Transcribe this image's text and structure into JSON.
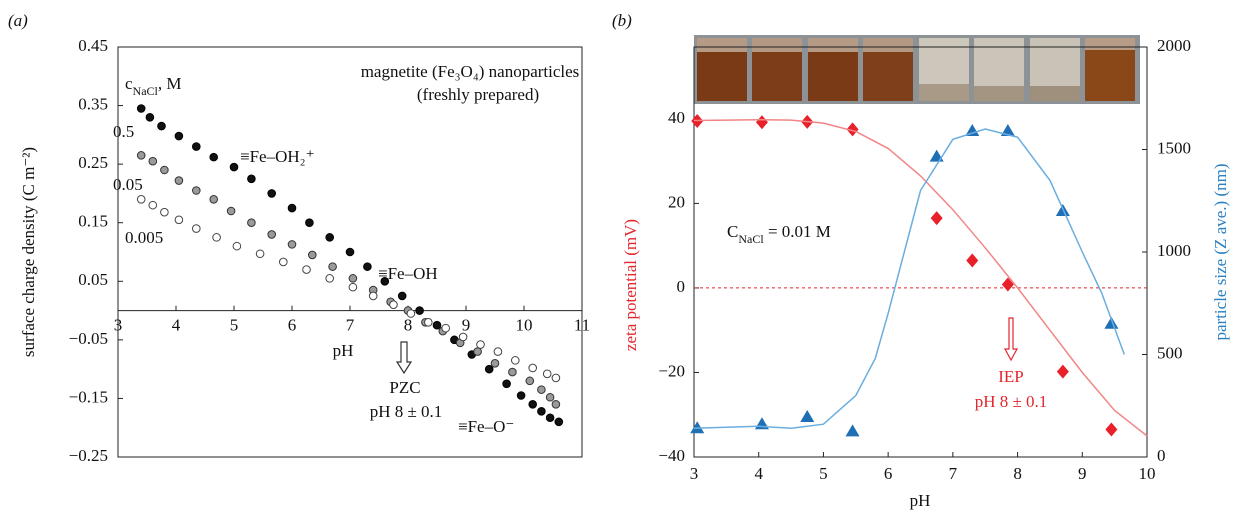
{
  "chart_data": [
    {
      "type": "scatter",
      "panel_label": "(a)",
      "title": "magnetite (Fe₃O₄) nanoparticles",
      "subtitle": "(freshly prepared)",
      "xlabel": "pH",
      "ylabel": "surface charge density (C m⁻²)",
      "legend_title": [
        "c",
        "NaCl",
        ", M"
      ],
      "xlim": [
        3,
        11
      ],
      "xticks": [
        3,
        4,
        5,
        6,
        7,
        8,
        9,
        10,
        11
      ],
      "ylim": [
        -0.25,
        0.45
      ],
      "yticks": [
        {
          "value": -0.25,
          "label": "−0.25"
        },
        {
          "value": -0.15,
          "label": "−0.15"
        },
        {
          "value": -0.05,
          "label": "−0.05"
        },
        0.05,
        0.15,
        0.25,
        0.35,
        0.45
      ],
      "series": [
        {
          "name": "0.5",
          "color": "#111111",
          "marker": "filled",
          "x": [
            3.4,
            3.55,
            3.75,
            4.05,
            4.35,
            4.65,
            5.0,
            5.3,
            5.65,
            6.0,
            6.3,
            6.65,
            7.0,
            7.3,
            7.6,
            7.9,
            8.2,
            8.5,
            8.8,
            9.1,
            9.4,
            9.7,
            9.95,
            10.15,
            10.3,
            10.45,
            10.6
          ],
          "values": [
            0.345,
            0.33,
            0.315,
            0.298,
            0.28,
            0.262,
            0.245,
            0.225,
            0.2,
            0.175,
            0.15,
            0.125,
            0.1,
            0.075,
            0.05,
            0.025,
            0.0,
            -0.025,
            -0.05,
            -0.075,
            -0.1,
            -0.125,
            -0.145,
            -0.16,
            -0.172,
            -0.183,
            -0.19
          ]
        },
        {
          "name": "0.05",
          "color": "#9a9a9a",
          "marker": "gray",
          "x": [
            3.4,
            3.6,
            3.8,
            4.05,
            4.35,
            4.65,
            4.95,
            5.3,
            5.65,
            6.0,
            6.35,
            6.7,
            7.05,
            7.4,
            7.7,
            8.0,
            8.3,
            8.6,
            8.9,
            9.2,
            9.5,
            9.8,
            10.1,
            10.3,
            10.45,
            10.55
          ],
          "values": [
            0.265,
            0.255,
            0.24,
            0.222,
            0.205,
            0.19,
            0.17,
            0.15,
            0.13,
            0.113,
            0.095,
            0.075,
            0.055,
            0.035,
            0.015,
            0.0,
            -0.02,
            -0.035,
            -0.055,
            -0.07,
            -0.09,
            -0.105,
            -0.12,
            -0.135,
            -0.148,
            -0.16
          ]
        },
        {
          "name": "0.005",
          "color": "#ffffff",
          "marker": "open",
          "x": [
            3.4,
            3.6,
            3.8,
            4.05,
            4.35,
            4.7,
            5.05,
            5.45,
            5.85,
            6.25,
            6.65,
            7.05,
            7.4,
            7.75,
            8.05,
            8.35,
            8.65,
            8.95,
            9.25,
            9.55,
            9.85,
            10.15,
            10.4,
            10.55
          ],
          "values": [
            0.19,
            0.18,
            0.168,
            0.155,
            0.14,
            0.125,
            0.11,
            0.097,
            0.083,
            0.07,
            0.055,
            0.04,
            0.025,
            0.01,
            -0.005,
            -0.02,
            -0.03,
            -0.045,
            -0.058,
            -0.07,
            -0.085,
            -0.098,
            -0.108,
            -0.115
          ]
        }
      ],
      "annotations": [
        "≡Fe–OH₂⁺",
        "≡Fe–OH",
        "≡Fe–O⁻",
        "PZC",
        "pH 8 ± 0.1"
      ]
    },
    {
      "type": "line",
      "panel_label": "(b)",
      "xlabel": "pH",
      "ylabel": "zeta potential (mV)",
      "y2label": "particle size (Z ave.) (nm)",
      "xlim": [
        3,
        10
      ],
      "xticks": [
        3,
        4,
        5,
        6,
        7,
        8,
        9,
        10
      ],
      "ylim": [
        -40,
        57
      ],
      "yticks": [
        {
          "value": -40,
          "label": "−40"
        },
        {
          "value": -20,
          "label": "−20"
        },
        0,
        20,
        40
      ],
      "y2lim": [
        0,
        2000
      ],
      "y2ticks": [
        0,
        500,
        1000,
        1500,
        2000
      ],
      "series": [
        {
          "color": "#e8202a",
          "style": "diamond",
          "x": [
            3.05,
            4.05,
            4.75,
            5.45,
            6.75,
            7.3,
            7.85,
            8.7,
            9.45
          ],
          "values": [
            39.5,
            39.2,
            39.3,
            37.5,
            16.5,
            6.5,
            0.8,
            -19.8,
            -33.5
          ]
        },
        {
          "color": "#f28585",
          "style": "curve",
          "x": [
            3,
            3.5,
            4,
            4.5,
            5,
            5.5,
            6,
            6.5,
            7,
            7.5,
            8,
            8.5,
            9,
            9.5,
            10
          ],
          "values": [
            39.6,
            39.7,
            39.8,
            39.7,
            39,
            37,
            33,
            26.5,
            18.5,
            9.5,
            0,
            -10,
            -20,
            -29,
            -35
          ]
        },
        {
          "color": "#1f6fb5",
          "style": "triangle",
          "axis": "y2",
          "x": [
            3.05,
            4.05,
            4.75,
            5.45,
            6.75,
            7.3,
            7.85,
            8.7,
            9.45
          ],
          "values": [
            140,
            160,
            195,
            125,
            1465,
            1590,
            1590,
            1200,
            650
          ]
        },
        {
          "color": "#6aaee0",
          "style": "curve",
          "axis": "y2",
          "x": [
            3,
            3.5,
            4,
            4.5,
            5,
            5.5,
            5.8,
            6,
            6.25,
            6.5,
            7,
            7.5,
            8,
            8.5,
            9,
            9.3,
            9.65
          ],
          "values": [
            140,
            145,
            150,
            140,
            160,
            300,
            480,
            700,
            1000,
            1300,
            1550,
            1600,
            1560,
            1350,
            1000,
            800,
            500
          ]
        }
      ],
      "conc_label": [
        "C",
        "NaCl",
        " = 0.01 M"
      ],
      "annotations": [
        "IEP",
        "pH 8 ± 0.1"
      ]
    }
  ]
}
